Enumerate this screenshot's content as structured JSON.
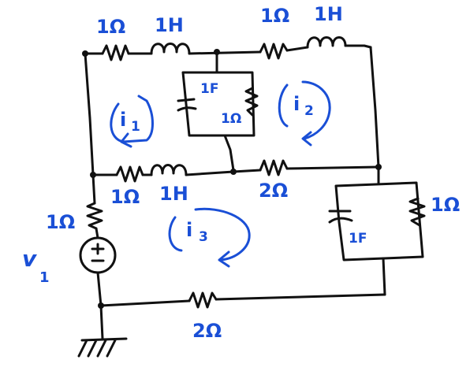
{
  "colors": {
    "wire": "#111111",
    "annotation": "#1a4fd6"
  },
  "labels": {
    "top_left_resistor": "1Ω",
    "top_left_inductor": "1H",
    "top_right_resistor": "1Ω",
    "top_right_inductor": "1H",
    "center_capacitor": "1F",
    "center_resistor": "1Ω",
    "mid_left_resistor": "1Ω",
    "mid_left_inductor": "1H",
    "mid_right_resistor": "2Ω",
    "source_resistor": "1Ω",
    "right_resistor": "1Ω",
    "right_capacitor": "1F",
    "bottom_resistor": "2Ω",
    "source_name": "v",
    "source_subscript": "1"
  },
  "mesh_currents": [
    {
      "name": "i",
      "sub": "1"
    },
    {
      "name": "i",
      "sub": "2"
    },
    {
      "name": "i",
      "sub": "3"
    }
  ]
}
